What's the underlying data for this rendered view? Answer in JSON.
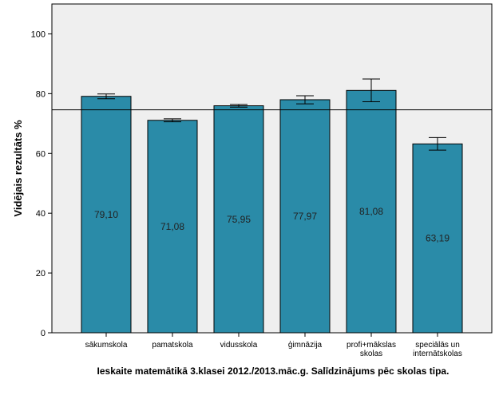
{
  "chart_data": {
    "type": "bar",
    "caption": "Ieskaite matemātikā 3.klasei 2012./2013.māc.g. Salīdzinājums pēc skolas tipa.",
    "ylabel": "Vidējais rezultāts %",
    "ylim": [
      0,
      110
    ],
    "yticks": [
      "0",
      "20",
      "40",
      "60",
      "80",
      "100"
    ],
    "reference_line": 74.6,
    "categories": [
      [
        "sākumskola"
      ],
      [
        "pamatskola"
      ],
      [
        "vidusskola"
      ],
      [
        "ģimnāzija"
      ],
      [
        "profi+mākslas",
        "skolas"
      ],
      [
        "speciālās un",
        "internātskolas"
      ]
    ],
    "values": [
      79.1,
      71.08,
      75.95,
      77.97,
      81.08,
      63.19
    ],
    "value_labels": [
      "79,10",
      "71,08",
      "75,95",
      "77,97",
      "81,08",
      "63,19"
    ],
    "error_low": [
      78.3,
      70.6,
      75.5,
      76.6,
      77.3,
      61.1
    ],
    "error_high": [
      79.9,
      71.6,
      76.4,
      79.3,
      84.9,
      65.3
    ],
    "colors": {
      "bar": "#2a8ba8",
      "plot_bg": "#efefef",
      "frame": "#000000"
    },
    "grid": false
  }
}
